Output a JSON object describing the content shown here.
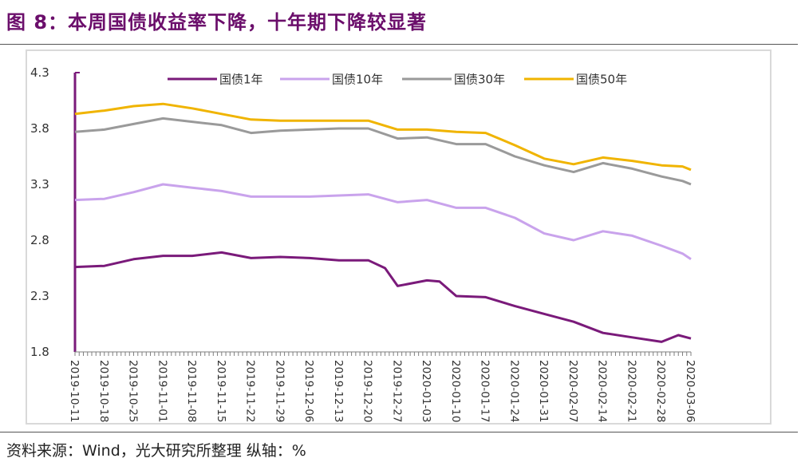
{
  "title": "图 8：本周国债收益率下降，十年期下降较显著",
  "source": "资料来源：Wind，光大研究所整理  纵轴：%",
  "chart_data": {
    "type": "line",
    "ylim": [
      1.8,
      4.3
    ],
    "yticks": [
      "4.3",
      "3.8",
      "3.3",
      "2.8",
      "2.3",
      "1.8"
    ],
    "ytick_values": [
      4.3,
      3.8,
      3.3,
      2.8,
      2.3,
      1.8
    ],
    "xtick_labels": [
      "2019-10-11",
      "2019-10-18",
      "2019-10-25",
      "2019-11-01",
      "2019-11-08",
      "2019-11-15",
      "2019-11-22",
      "2019-11-29",
      "2019-12-06",
      "2019-12-13",
      "2019-12-20",
      "2019-12-27",
      "2020-01-03",
      "2020-01-10",
      "2020-01-17",
      "2020-01-24",
      "2020-01-31",
      "2020-02-07",
      "2020-02-14",
      "2020-02-21",
      "2020-02-28",
      "2020-03-06"
    ],
    "legend_position": "top",
    "series": [
      {
        "name": "国债1年",
        "color": "#7a1a7a",
        "x": [
          "2019-10-11",
          "2019-10-18",
          "2019-10-25",
          "2019-11-01",
          "2019-11-08",
          "2019-11-15",
          "2019-11-22",
          "2019-11-29",
          "2019-12-06",
          "2019-12-13",
          "2019-12-20",
          "2019-12-24",
          "2019-12-27",
          "2020-01-03",
          "2020-01-06",
          "2020-01-10",
          "2020-01-17",
          "2020-01-24",
          "2020-01-31",
          "2020-02-07",
          "2020-02-14",
          "2020-02-21",
          "2020-02-28",
          "2020-03-03",
          "2020-03-06"
        ],
        "values": [
          2.56,
          2.57,
          2.63,
          2.66,
          2.66,
          2.69,
          2.64,
          2.65,
          2.64,
          2.62,
          2.62,
          2.55,
          2.39,
          2.44,
          2.43,
          2.3,
          2.29,
          2.21,
          2.14,
          2.07,
          1.97,
          1.93,
          1.89,
          1.95,
          1.92
        ]
      },
      {
        "name": "国债10年",
        "color": "#c9a3ec",
        "x": [
          "2019-10-11",
          "2019-10-18",
          "2019-10-25",
          "2019-11-01",
          "2019-11-08",
          "2019-11-15",
          "2019-11-22",
          "2019-11-29",
          "2019-12-06",
          "2019-12-13",
          "2019-12-20",
          "2019-12-27",
          "2020-01-03",
          "2020-01-10",
          "2020-01-17",
          "2020-01-24",
          "2020-01-31",
          "2020-02-07",
          "2020-02-14",
          "2020-02-21",
          "2020-02-28",
          "2020-03-04",
          "2020-03-06"
        ],
        "values": [
          3.16,
          3.17,
          3.23,
          3.3,
          3.27,
          3.24,
          3.19,
          3.19,
          3.19,
          3.2,
          3.21,
          3.14,
          3.16,
          3.09,
          3.09,
          3.0,
          2.86,
          2.8,
          2.88,
          2.84,
          2.75,
          2.68,
          2.63
        ]
      },
      {
        "name": "国债30年",
        "color": "#9a9a9a",
        "x": [
          "2019-10-11",
          "2019-10-18",
          "2019-10-25",
          "2019-11-01",
          "2019-11-08",
          "2019-11-15",
          "2019-11-22",
          "2019-11-29",
          "2019-12-06",
          "2019-12-13",
          "2019-12-20",
          "2019-12-27",
          "2020-01-03",
          "2020-01-10",
          "2020-01-17",
          "2020-01-24",
          "2020-01-31",
          "2020-02-07",
          "2020-02-14",
          "2020-02-21",
          "2020-02-28",
          "2020-03-04",
          "2020-03-06"
        ],
        "values": [
          3.77,
          3.79,
          3.84,
          3.89,
          3.86,
          3.83,
          3.76,
          3.78,
          3.79,
          3.8,
          3.8,
          3.71,
          3.72,
          3.66,
          3.66,
          3.55,
          3.47,
          3.41,
          3.49,
          3.44,
          3.37,
          3.33,
          3.3
        ]
      },
      {
        "name": "国债50年",
        "color": "#f0b400",
        "x": [
          "2019-10-11",
          "2019-10-18",
          "2019-10-25",
          "2019-11-01",
          "2019-11-08",
          "2019-11-15",
          "2019-11-22",
          "2019-11-29",
          "2019-12-06",
          "2019-12-13",
          "2019-12-20",
          "2019-12-27",
          "2020-01-03",
          "2020-01-10",
          "2020-01-17",
          "2020-01-24",
          "2020-01-31",
          "2020-02-07",
          "2020-02-14",
          "2020-02-21",
          "2020-02-28",
          "2020-03-04",
          "2020-03-06"
        ],
        "values": [
          3.93,
          3.96,
          4.0,
          4.02,
          3.98,
          3.93,
          3.88,
          3.87,
          3.87,
          3.87,
          3.87,
          3.79,
          3.79,
          3.77,
          3.76,
          3.65,
          3.53,
          3.48,
          3.54,
          3.51,
          3.47,
          3.46,
          3.43
        ]
      }
    ]
  }
}
